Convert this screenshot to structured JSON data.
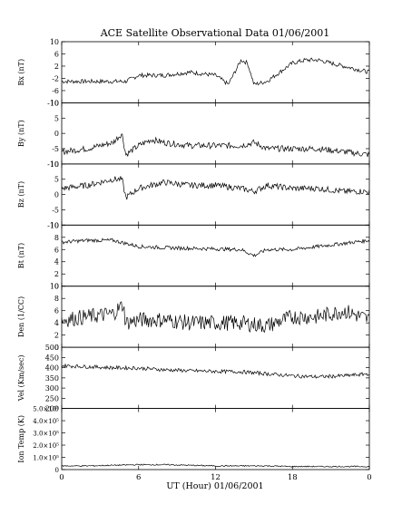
{
  "title": "ACE Satellite Observational Data   01/06/2001",
  "xlabel": "UT (Hour)   01/06/2001",
  "colors": {
    "line": "#000000",
    "background": "#ffffff"
  },
  "chart_data": [
    {
      "type": "line",
      "ylabel": "Bx (nT)",
      "ylim": [
        -10,
        10
      ],
      "yticks": [
        "-10",
        "-6",
        "-2",
        "2",
        "6",
        "10"
      ],
      "ytick_values": [
        -10,
        -6,
        -2,
        2,
        6,
        10
      ],
      "x": [
        0,
        2,
        4,
        5,
        6,
        8,
        10,
        12,
        13,
        14,
        14.5,
        15,
        16,
        18,
        19,
        20,
        22,
        24
      ],
      "values": [
        -3,
        -3,
        -3,
        -3,
        -1,
        -1,
        0,
        -1,
        -4,
        4,
        3,
        -4,
        -3,
        3,
        4,
        4,
        2,
        0
      ]
    },
    {
      "type": "line",
      "ylabel": "By (nT)",
      "ylim": [
        -10,
        10
      ],
      "yticks": [
        "-10",
        "-5",
        "0",
        "5",
        "10"
      ],
      "ytick_values": [
        -10,
        -5,
        0,
        5,
        10
      ],
      "x": [
        0,
        2,
        3,
        4,
        4.7,
        5,
        6,
        7,
        8,
        10,
        12,
        14,
        15,
        16,
        18,
        20,
        22,
        24
      ],
      "values": [
        -6,
        -5,
        -4,
        -3,
        0,
        -7,
        -4,
        -2,
        -3,
        -4,
        -4,
        -4,
        -3,
        -5,
        -5,
        -5,
        -6,
        -7
      ]
    },
    {
      "type": "line",
      "ylabel": "Bz (nT)",
      "ylim": [
        -10,
        10
      ],
      "yticks": [
        "-10",
        "-5",
        "0",
        "5",
        "10"
      ],
      "ytick_values": [
        -10,
        -5,
        0,
        5,
        10
      ],
      "x": [
        0,
        2,
        4,
        4.7,
        5,
        6,
        8,
        10,
        12,
        14,
        15,
        16,
        18,
        20,
        22,
        24
      ],
      "values": [
        2,
        3,
        5,
        5,
        -1,
        2,
        4,
        3,
        3,
        2,
        1,
        3,
        2,
        2,
        1,
        1
      ]
    },
    {
      "type": "line",
      "ylabel": "Bt (nT)",
      "ylim": [
        0,
        10
      ],
      "yticks": [
        "0",
        "2",
        "4",
        "6",
        "8",
        "10"
      ],
      "ytick_values": [
        0,
        2,
        4,
        6,
        8,
        10
      ],
      "x": [
        0,
        2,
        4,
        5,
        6,
        8,
        10,
        12,
        14,
        15,
        16,
        18,
        20,
        22,
        24
      ],
      "values": [
        7.2,
        7.5,
        7.5,
        7,
        6.5,
        6.3,
        6.2,
        6.1,
        6,
        5,
        6,
        6,
        6.5,
        7,
        7.5
      ]
    },
    {
      "type": "line",
      "ylabel": "Den (1/CC)",
      "ylim": [
        0,
        10
      ],
      "yticks": [
        "0",
        "2",
        "4",
        "6",
        "8",
        "10"
      ],
      "ytick_values": [
        0,
        2,
        4,
        6,
        8,
        10
      ],
      "x": [
        0,
        2,
        4,
        4.8,
        5,
        6,
        8,
        10,
        12,
        14,
        16,
        18,
        20,
        22,
        24
      ],
      "values": [
        4.5,
        5,
        5.5,
        7,
        4,
        4.5,
        4.5,
        4,
        4,
        4,
        3.5,
        5,
        5,
        6,
        4.5
      ]
    },
    {
      "type": "line",
      "ylabel": "Vel (Km/sec)",
      "ylim": [
        200,
        500
      ],
      "yticks": [
        "200",
        "250",
        "300",
        "350",
        "400",
        "450",
        "500"
      ],
      "ytick_values": [
        200,
        250,
        300,
        350,
        400,
        450,
        500
      ],
      "x": [
        0,
        2,
        4,
        6,
        8,
        10,
        12,
        14,
        15,
        16,
        18,
        20,
        22,
        24
      ],
      "values": [
        410,
        405,
        400,
        398,
        390,
        385,
        382,
        380,
        375,
        370,
        360,
        355,
        360,
        370
      ]
    },
    {
      "type": "line",
      "ylabel": "Ion Temp (K)",
      "ylim": [
        0,
        500000
      ],
      "yticks": [
        "0",
        "1.0×10⁵",
        "2.0×10⁵",
        "3.0×10⁵",
        "4.0×10⁵",
        "5.0×10⁵"
      ],
      "ytick_values": [
        0,
        100000,
        200000,
        300000,
        400000,
        500000
      ],
      "x": [
        0,
        2,
        4,
        6,
        8,
        10,
        12,
        14,
        16,
        18,
        20,
        22,
        24
      ],
      "values": [
        30000,
        30000,
        35000,
        40000,
        40000,
        35000,
        30000,
        30000,
        30000,
        25000,
        25000,
        25000,
        25000
      ]
    }
  ],
  "xaxis": {
    "ticks": [
      "0",
      "6",
      "12",
      "18",
      "0"
    ],
    "values": [
      0,
      6,
      12,
      18,
      24
    ],
    "xlim": [
      0,
      24
    ]
  }
}
